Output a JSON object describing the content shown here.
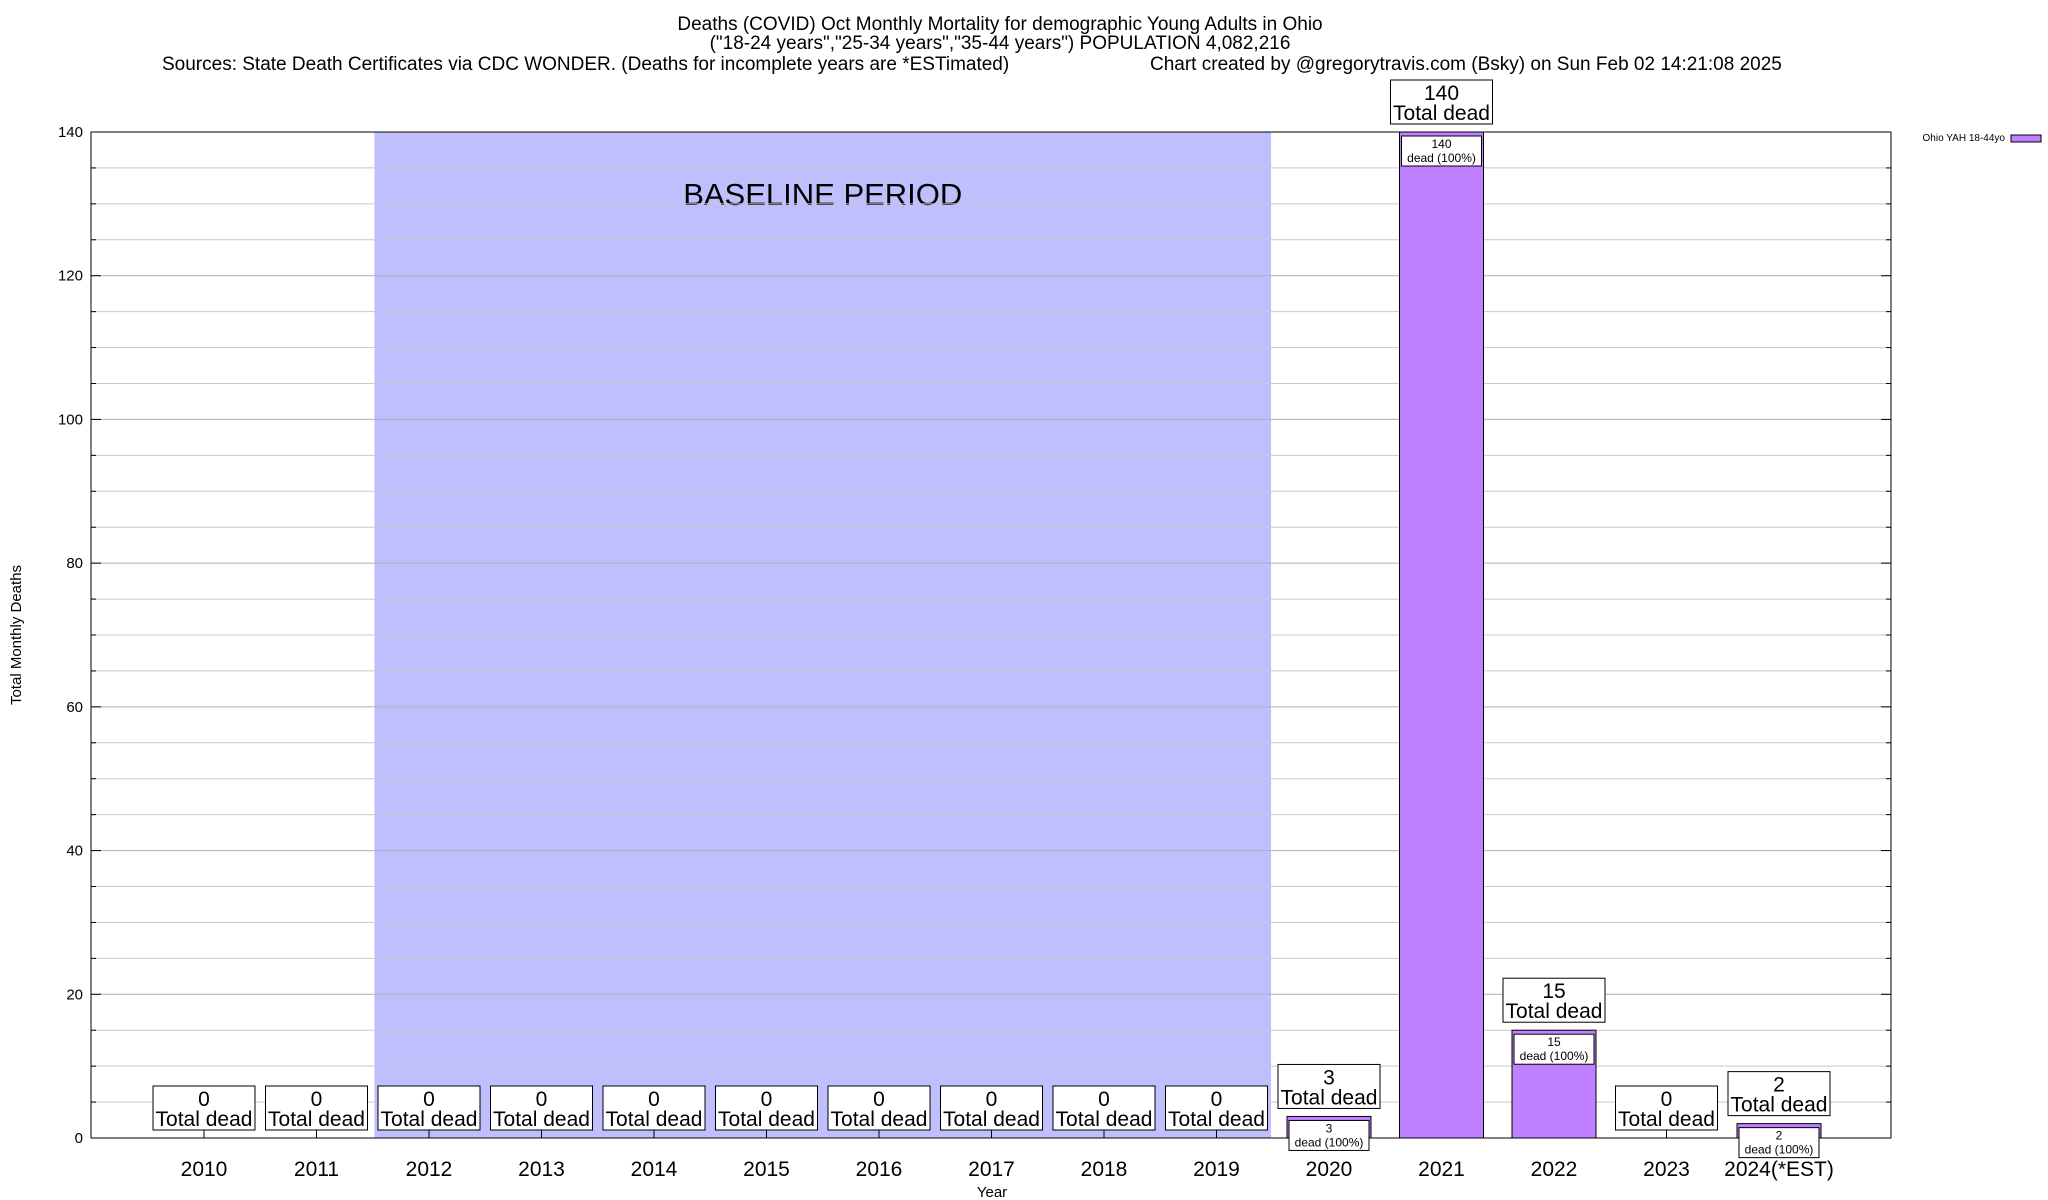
{
  "chart_data": {
    "type": "bar",
    "title": "Deaths (COVID) Oct Monthly Mortality for demographic Young Adults in Ohio",
    "subtitle": "(\"18-24 years\",\"25-34 years\",\"35-44 years\") POPULATION 4,082,216",
    "source": "Sources: State Death Certificates via CDC WONDER. (Deaths for incomplete years are *ESTimated)",
    "credit": "Chart created by @gregorytravis.com (Bsky) on Sun Feb 02 14:21:08 2025",
    "xlabel": "Year",
    "ylabel": "Total Monthly Deaths",
    "ylim": [
      0,
      140
    ],
    "yticks": [
      0,
      20,
      40,
      60,
      80,
      100,
      120,
      140
    ],
    "grid": true,
    "legend_position": "top-right",
    "categories": [
      "2010",
      "2011",
      "2012",
      "2013",
      "2014",
      "2015",
      "2016",
      "2017",
      "2018",
      "2019",
      "2020",
      "2021",
      "2022",
      "2023",
      "2024(*EST)"
    ],
    "series": [
      {
        "name": "Ohio YAH 18-44yo",
        "values": [
          0,
          0,
          0,
          0,
          0,
          0,
          0,
          0,
          0,
          0,
          3,
          140,
          15,
          0,
          2
        ],
        "color": "#bf80ff"
      }
    ],
    "total_label": "Total dead",
    "segment_label_suffix": "dead (100%)",
    "baseline": {
      "label": "BASELINE PERIOD",
      "from": "2012",
      "to": "2019",
      "color": "#bfbffd"
    }
  }
}
